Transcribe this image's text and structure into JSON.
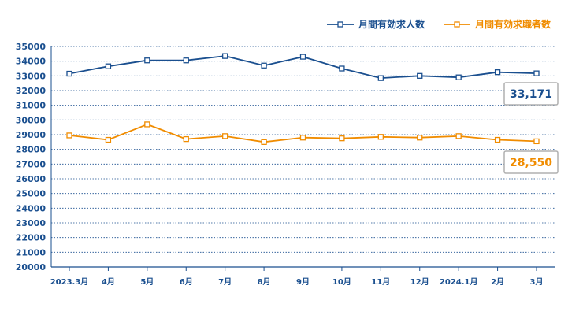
{
  "chart_data": {
    "type": "line",
    "categories": [
      "2023.3月",
      "4月",
      "5月",
      "6月",
      "7月",
      "8月",
      "9月",
      "10月",
      "11月",
      "12月",
      "2024.1月",
      "2月",
      "3月"
    ],
    "series": [
      {
        "name": "月間有効求人数",
        "color": "#1a4f8f",
        "values": [
          33150,
          33650,
          34050,
          34050,
          34350,
          33700,
          34300,
          33500,
          32850,
          33000,
          32900,
          33250,
          33171
        ]
      },
      {
        "name": "月間有効求職者数",
        "color": "#f08c00",
        "values": [
          28950,
          28650,
          29700,
          28700,
          28900,
          28500,
          28800,
          28750,
          28850,
          28800,
          28900,
          28650,
          28550
        ]
      }
    ],
    "ylim": [
      20000,
      35000
    ],
    "yticks": [
      20000,
      21000,
      22000,
      23000,
      24000,
      25000,
      26000,
      27000,
      28000,
      29000,
      30000,
      31000,
      32000,
      33000,
      34000,
      35000
    ],
    "grid": true,
    "legend_position": "top-right",
    "callouts": [
      {
        "series": "月間有効求人数",
        "text": "33,171",
        "color": "#1a4f8f"
      },
      {
        "series": "月間有効求職者数",
        "text": "28,550",
        "color": "#f08c00"
      }
    ]
  }
}
